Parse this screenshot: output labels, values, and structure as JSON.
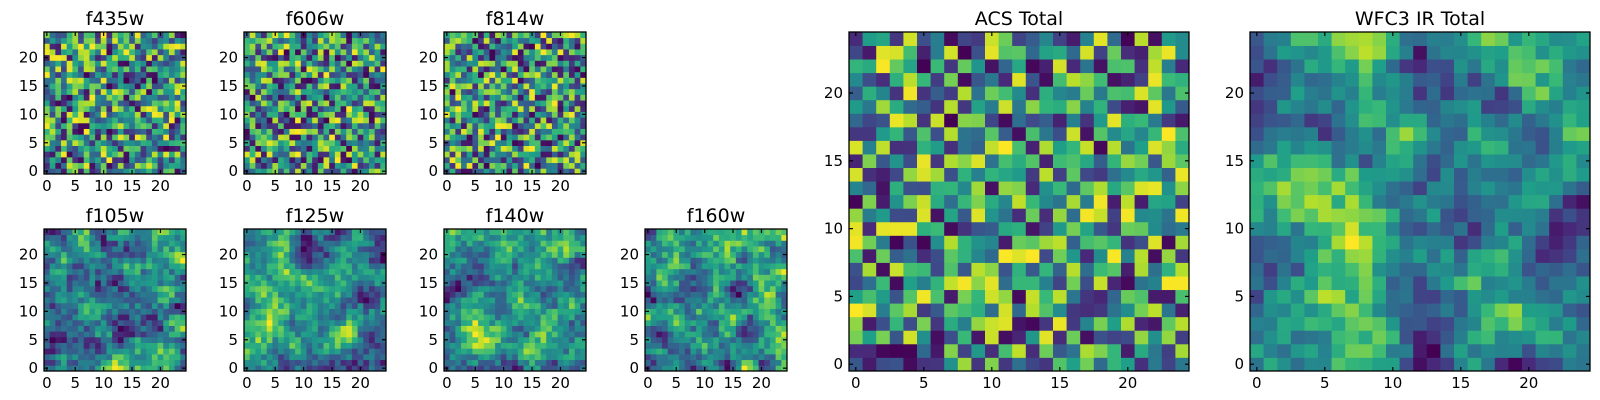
{
  "colormap": "viridis",
  "colors": [
    "#440154",
    "#3b528b",
    "#21918c",
    "#5ec962",
    "#fde725"
  ],
  "chart_data": [
    {
      "type": "heatmap",
      "title": "f435w",
      "grid_size": 25,
      "xlim": [
        -0.5,
        24.5
      ],
      "ylim": [
        -0.5,
        24.5
      ],
      "xticks": [
        0,
        5,
        10,
        15,
        20
      ],
      "yticks": [
        0,
        5,
        10,
        15,
        20
      ],
      "texture": "noise",
      "seed": 11
    },
    {
      "type": "heatmap",
      "title": "f606w",
      "grid_size": 25,
      "xlim": [
        -0.5,
        24.5
      ],
      "ylim": [
        -0.5,
        24.5
      ],
      "xticks": [
        0,
        5,
        10,
        15,
        20
      ],
      "yticks": [
        0,
        5,
        10,
        15,
        20
      ],
      "texture": "noise",
      "seed": 23
    },
    {
      "type": "heatmap",
      "title": "f814w",
      "grid_size": 25,
      "xlim": [
        -0.5,
        24.5
      ],
      "ylim": [
        -0.5,
        24.5
      ],
      "xticks": [
        0,
        5,
        10,
        15,
        20
      ],
      "yticks": [
        0,
        5,
        10,
        15,
        20
      ],
      "texture": "noise",
      "seed": 37
    },
    {
      "type": "heatmap",
      "title": "f105w",
      "grid_size": 25,
      "xlim": [
        -0.5,
        24.5
      ],
      "ylim": [
        -0.5,
        24.5
      ],
      "xticks": [
        0,
        5,
        10,
        15,
        20
      ],
      "yticks": [
        0,
        5,
        10,
        15,
        20
      ],
      "texture": "smooth",
      "seed": 41
    },
    {
      "type": "heatmap",
      "title": "f125w",
      "grid_size": 25,
      "xlim": [
        -0.5,
        24.5
      ],
      "ylim": [
        -0.5,
        24.5
      ],
      "xticks": [
        0,
        5,
        10,
        15,
        20
      ],
      "yticks": [
        0,
        5,
        10,
        15,
        20
      ],
      "texture": "smooth",
      "seed": 53
    },
    {
      "type": "heatmap",
      "title": "f140w",
      "grid_size": 25,
      "xlim": [
        -0.5,
        24.5
      ],
      "ylim": [
        -0.5,
        24.5
      ],
      "xticks": [
        0,
        5,
        10,
        15,
        20
      ],
      "yticks": [
        0,
        5,
        10,
        15,
        20
      ],
      "texture": "smooth",
      "seed": 67
    },
    {
      "type": "heatmap",
      "title": "f160w",
      "grid_size": 25,
      "xlim": [
        -0.5,
        24.5
      ],
      "ylim": [
        -0.5,
        24.5
      ],
      "xticks": [
        0,
        5,
        10,
        15,
        20
      ],
      "yticks": [
        0,
        5,
        10,
        15,
        20
      ],
      "texture": "smooth",
      "seed": 79
    },
    {
      "type": "heatmap",
      "title": "ACS Total",
      "grid_size": 25,
      "xlim": [
        -0.5,
        24.5
      ],
      "ylim": [
        -0.5,
        24.5
      ],
      "xticks": [
        0,
        5,
        10,
        15,
        20
      ],
      "yticks": [
        0,
        5,
        10,
        15,
        20
      ],
      "texture": "noise",
      "seed": 97
    },
    {
      "type": "heatmap",
      "title": "WFC3 IR Total",
      "grid_size": 25,
      "xlim": [
        -0.5,
        24.5
      ],
      "ylim": [
        -0.5,
        24.5
      ],
      "xticks": [
        0,
        5,
        10,
        15,
        20
      ],
      "yticks": [
        0,
        5,
        10,
        15,
        20
      ],
      "texture": "smooth",
      "seed": 101
    }
  ]
}
